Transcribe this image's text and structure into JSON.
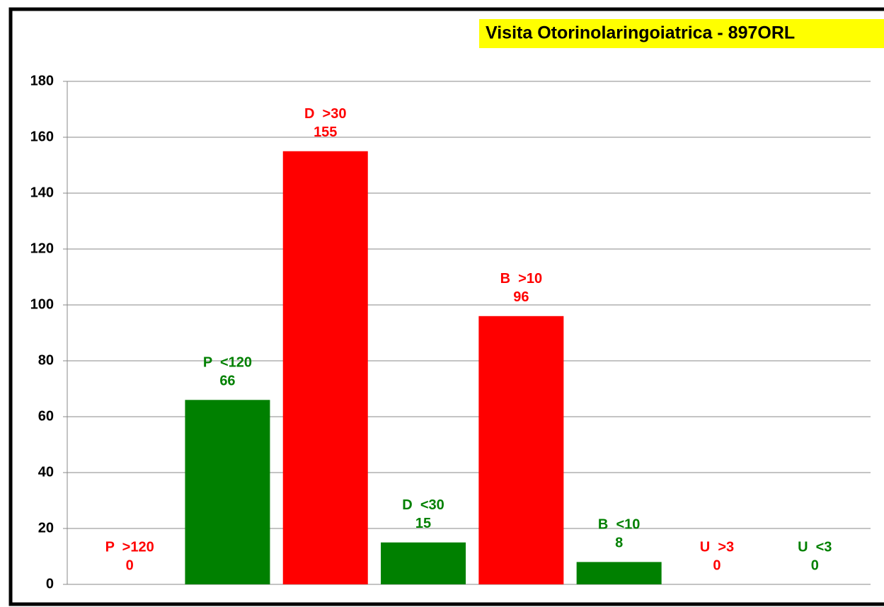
{
  "chart_data": {
    "type": "bar",
    "title": "Visita Otorinolaringoiatrica - 897ORL",
    "categories": [
      "P  >120",
      "P  <120",
      "D  >30",
      "D  <30",
      "B  >10",
      "B  <10",
      "U  >3",
      "U  <3"
    ],
    "values": [
      0,
      66,
      155,
      15,
      96,
      8,
      0,
      0
    ],
    "colors": [
      "#ff0000",
      "#008000",
      "#ff0000",
      "#008000",
      "#ff0000",
      "#008000",
      "#ff0000",
      "#008000"
    ],
    "ylim": [
      0,
      180
    ],
    "yticks": [
      0,
      20,
      40,
      60,
      80,
      100,
      120,
      140,
      160,
      180
    ],
    "grid": true
  }
}
